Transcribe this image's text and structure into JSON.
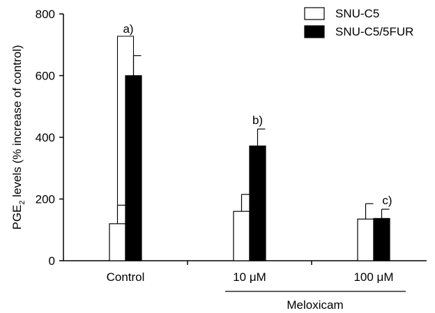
{
  "chart_data": {
    "type": "bar",
    "categories": [
      "Control",
      "10 μM",
      "100 μM"
    ],
    "group_label": "Meloxicam",
    "ylabel_main": "PGE",
    "ylabel_sub": "2",
    "ylabel_rest": " levels (% increase of control)",
    "ylim": [
      0,
      800
    ],
    "yticks": [
      "0",
      "200",
      "400",
      "600",
      "800"
    ],
    "series": [
      {
        "name": "SNU-C5",
        "values": [
          120,
          160,
          135
        ],
        "errors": [
          60,
          55,
          50
        ],
        "color": "#ffffff"
      },
      {
        "name": "SNU-C5/5FUR",
        "values": [
          600,
          372,
          137
        ],
        "errors": [
          65,
          55,
          30
        ],
        "color": "#000000"
      }
    ],
    "annotations": [
      "a)",
      "b)",
      "c)"
    ],
    "legend_position": "top-right",
    "grid": false
  }
}
